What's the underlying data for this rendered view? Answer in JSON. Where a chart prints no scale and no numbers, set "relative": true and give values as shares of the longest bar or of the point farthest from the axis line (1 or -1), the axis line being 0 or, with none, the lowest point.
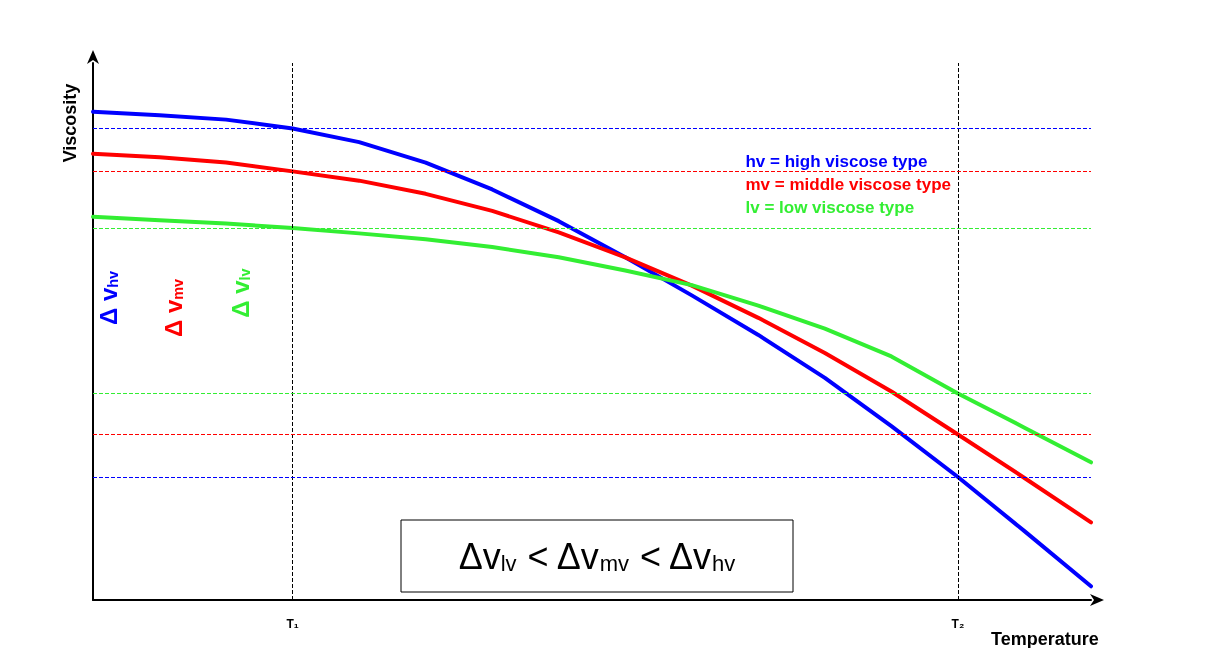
{
  "chart_data": {
    "type": "line",
    "relative": true,
    "xlabel": "Temperature",
    "ylabel": "Viscosity",
    "categories": [
      null,
      null,
      null,
      "T₁",
      null,
      null,
      null,
      null,
      null,
      null,
      null,
      null,
      null,
      "T₂",
      null,
      null
    ],
    "series": [
      {
        "name": "hv = high viscose type",
        "color": "#0000ff",
        "values": [
          1.0,
          0.993,
          0.984,
          0.966,
          0.938,
          0.896,
          0.841,
          0.776,
          0.702,
          0.624,
          0.543,
          0.455,
          0.356,
          0.252,
          0.141,
          0.028
        ]
      },
      {
        "name": "mv = middle viscose type",
        "color": "#ff0000",
        "values": [
          0.914,
          0.907,
          0.896,
          0.878,
          0.859,
          0.832,
          0.797,
          0.753,
          0.702,
          0.644,
          0.578,
          0.506,
          0.427,
          0.339,
          0.25,
          0.159
        ]
      },
      {
        "name": "lv = low viscose type",
        "color": "#33ee33",
        "values": [
          0.785,
          0.778,
          0.771,
          0.762,
          0.751,
          0.739,
          0.723,
          0.702,
          0.675,
          0.645,
          0.603,
          0.556,
          0.499,
          0.423,
          0.353,
          0.282
        ]
      }
    ],
    "ref_lines": [
      {
        "axis": "x",
        "value": "T₁",
        "label": null,
        "color": "#000000",
        "line_style": "dashed"
      },
      {
        "axis": "x",
        "value": "T₂",
        "label": null,
        "color": "#000000",
        "line_style": "dashed"
      },
      {
        "axis": "y",
        "value": 0.966,
        "label": null,
        "color": "#0000ff",
        "line_style": "dashed"
      },
      {
        "axis": "y",
        "value": 0.252,
        "label": null,
        "color": "#0000ff",
        "line_style": "dashed"
      },
      {
        "axis": "y",
        "value": 0.878,
        "label": null,
        "color": "#ff0000",
        "line_style": "dashed"
      },
      {
        "axis": "y",
        "value": 0.339,
        "label": null,
        "color": "#ff0000",
        "line_style": "dashed"
      },
      {
        "axis": "y",
        "value": 0.762,
        "label": null,
        "color": "#33ee33",
        "line_style": "dashed"
      },
      {
        "axis": "y",
        "value": 0.423,
        "label": null,
        "color": "#33ee33",
        "line_style": "dashed"
      }
    ],
    "annotations": [
      "Δ v$_{hv}$",
      "Δ v$_{mv}$",
      "Δ v$_{lv}$",
      "Δv$_{lv}$ < Δv$_{mv}$ < Δv$_{hv}$"
    ],
    "legend": "top right",
    "grid": false,
    "marker": "none",
    "line_style": "solid"
  }
}
